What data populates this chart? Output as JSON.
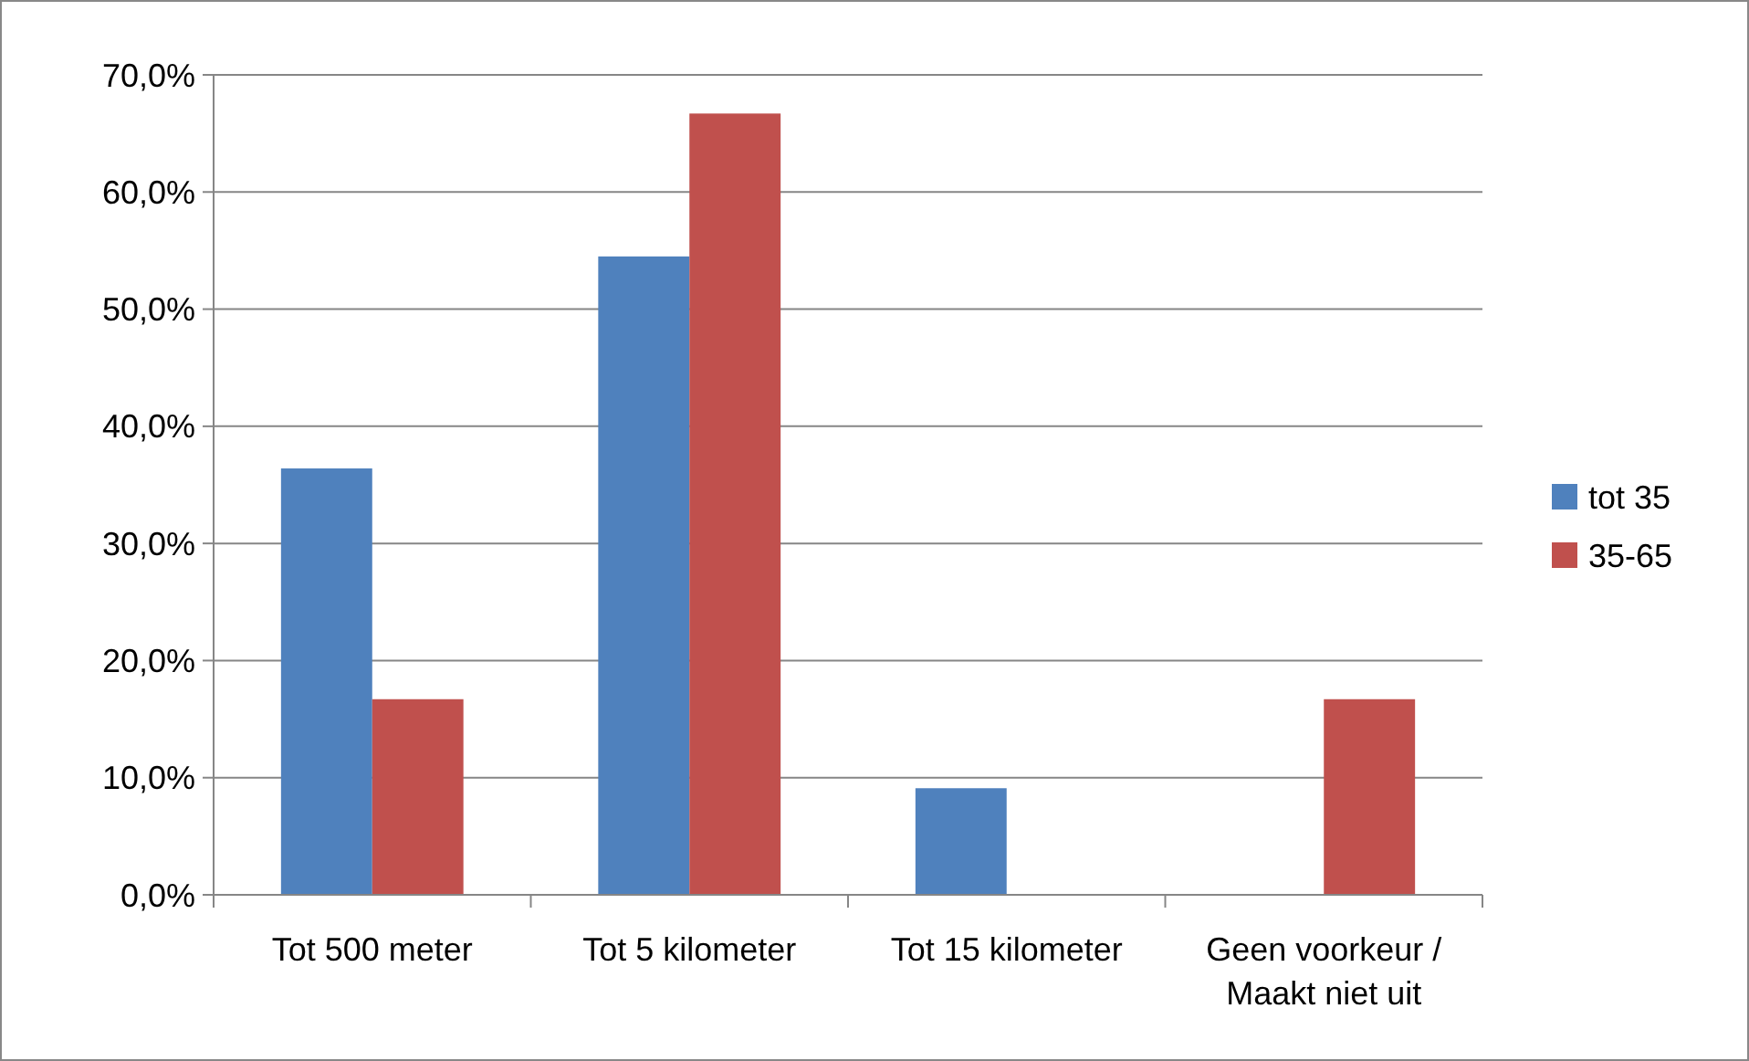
{
  "chart_data": {
    "type": "bar",
    "categories": [
      "Tot 500 meter",
      "Tot 5 kilometer",
      "Tot 15 kilometer",
      "Geen voorkeur / Maakt niet uit"
    ],
    "series": [
      {
        "name": "tot 35",
        "color": "#4f81bd",
        "values": [
          36.4,
          54.5,
          9.1,
          0
        ]
      },
      {
        "name": "35-65",
        "color": "#c0504d",
        "values": [
          16.7,
          66.7,
          0,
          16.7
        ]
      }
    ],
    "ylim": [
      0,
      70
    ],
    "yticks": [
      {
        "value": 0,
        "label": "0,0%"
      },
      {
        "value": 10,
        "label": "10,0%"
      },
      {
        "value": 20,
        "label": "20,0%"
      },
      {
        "value": 30,
        "label": "30,0%"
      },
      {
        "value": 40,
        "label": "40,0%"
      },
      {
        "value": 50,
        "label": "50,0%"
      },
      {
        "value": 60,
        "label": "60,0%"
      },
      {
        "value": 70,
        "label": "70,0%"
      }
    ],
    "grid": "y",
    "legend": "right"
  }
}
